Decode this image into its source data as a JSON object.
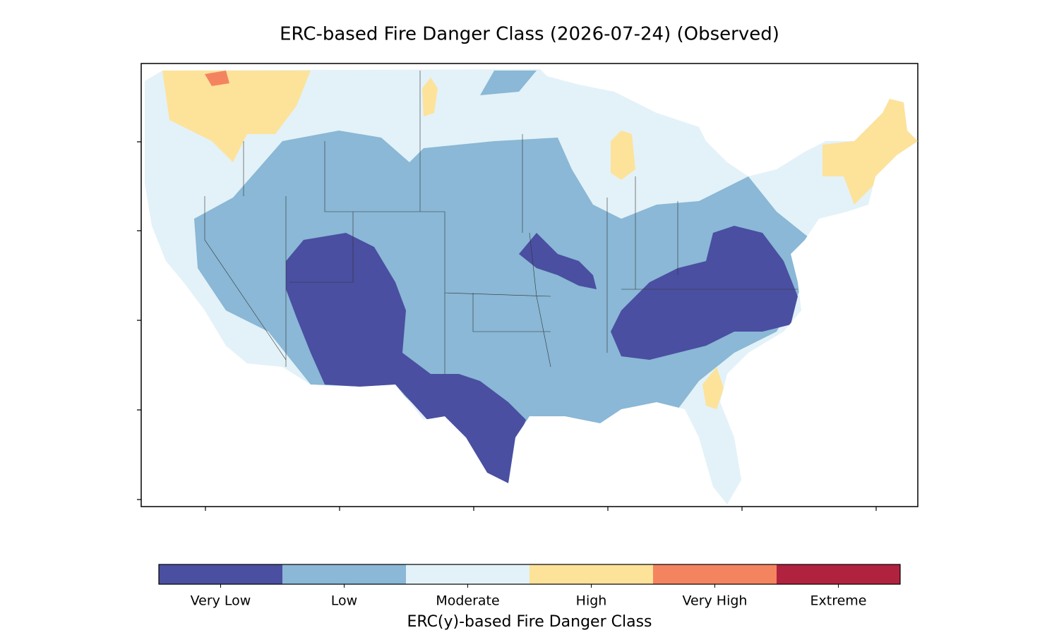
{
  "title": "ERC-based Fire Danger Class (2026-07-24) (Observed)",
  "colorbar": {
    "label": "ERC(y)-based Fire Danger Class",
    "classes": [
      {
        "label": "Very Low",
        "color": "#4a4fa1"
      },
      {
        "label": "Low",
        "color": "#8ab8d6"
      },
      {
        "label": "Moderate",
        "color": "#e3f2f8"
      },
      {
        "label": "High",
        "color": "#fde29a"
      },
      {
        "label": "Very High",
        "color": "#f4845f"
      },
      {
        "label": "Extreme",
        "color": "#b1223f"
      }
    ]
  }
}
